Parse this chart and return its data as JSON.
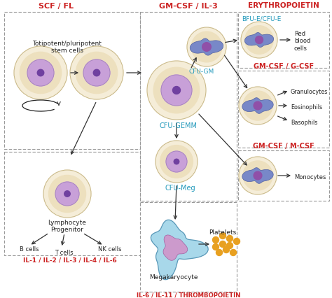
{
  "bg_color": "#ffffff",
  "red_color": "#cc2222",
  "cyan_color": "#2299bb",
  "black_color": "#222222",
  "dash_color": "#999999",
  "cell_outer": "#f5edd8",
  "cell_inner": "#ede0be",
  "nuc_plain": "#c8a0d8",
  "nuc_dot": "#7040a0",
  "nuc_complex_blue": "#7888c8",
  "nuc_complex_purple": "#9050a8",
  "mega_body": "#a8d8ea",
  "mega_nuc": "#cc9acc",
  "platelet": "#e8a020",
  "labels": {
    "scf_fl": "SCF / FL",
    "gm_csf_il3": "GM-CSF / IL-3",
    "erythropoietin": "ERYTHROPOIETIN",
    "bfu_e": "BFU-E/CFU-E",
    "gm_csf_gcsf": "GM-CSF / G-CSF",
    "gm_csf_mcsf": "GM-CSF / M-CSF",
    "cfu_gemm": "CFU-GEMM",
    "cfu_gm": "CFU-GM",
    "cfu_meg": "CFU-Meg",
    "totipotent": "Totipotent/pluripotent\nstem cells",
    "lymph_prog": "Lymphocyte\nProgenitor",
    "b_cells": "B cells",
    "t_cells": "T cells",
    "nk_cells": "NK cells",
    "granulocytes": "Granulocytes",
    "eosinophils": "Eosinophils",
    "basophils": "Basophils",
    "monocytes": "Monocytes",
    "red_blood": "Red\nblood\ncells",
    "platelets": "Platelets",
    "megakaryocyte": "Megakaryocyte",
    "il1": "IL-1 / IL-2 / IL-3 / IL-4 / IL-6",
    "il6": "IL-6 / IL-11 / THROMBOPOIETIN"
  }
}
